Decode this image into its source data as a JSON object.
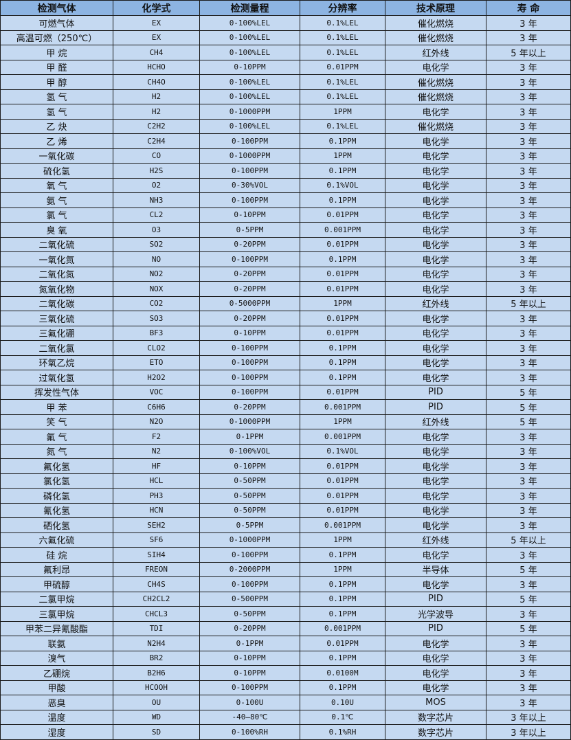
{
  "table": {
    "headers": [
      "检测气体",
      "化学式",
      "检测量程",
      "分辨率",
      "技术原理",
      "寿 命"
    ],
    "rows": [
      [
        "可燃气体",
        "EX",
        "0-100%LEL",
        "0.1%LEL",
        "催化燃烧",
        "3 年"
      ],
      [
        "高温可燃（250℃）",
        "EX",
        "0-100%LEL",
        "0.1%LEL",
        "催化燃烧",
        "3 年"
      ],
      [
        "甲 烷",
        "CH4",
        "0-100%LEL",
        "0.1%LEL",
        "红外线",
        "5 年以上"
      ],
      [
        "甲 醛",
        "HCHO",
        "0-10PPM",
        "0.01PPM",
        "电化学",
        "3 年"
      ],
      [
        "甲 醇",
        "CH4O",
        "0-100%LEL",
        "0.1%LEL",
        "催化燃烧",
        "3 年"
      ],
      [
        "氢 气",
        "H2",
        "0-100%LEL",
        "0.1%LEL",
        "催化燃烧",
        "3 年"
      ],
      [
        "氢 气",
        "H2",
        "0-1000PPM",
        "1PPM",
        "电化学",
        "3 年"
      ],
      [
        "乙 炔",
        "C2H2",
        "0-100%LEL",
        "0.1%LEL",
        "催化燃烧",
        "3 年"
      ],
      [
        "乙 烯",
        "C2H4",
        "0-100PPM",
        "0.1PPM",
        "电化学",
        "3 年"
      ],
      [
        "一氧化碳",
        "CO",
        "0-1000PPM",
        "1PPM",
        "电化学",
        "3 年"
      ],
      [
        "硫化氢",
        "H2S",
        "0-100PPM",
        "0.1PPM",
        "电化学",
        "3 年"
      ],
      [
        "氧 气",
        "O2",
        "0-30%VOL",
        "0.1%VOL",
        "电化学",
        "3 年"
      ],
      [
        "氨 气",
        "NH3",
        "0-100PPM",
        "0.1PPM",
        "电化学",
        "3 年"
      ],
      [
        "氯 气",
        "CL2",
        "0-10PPM",
        "0.01PPM",
        "电化学",
        "3 年"
      ],
      [
        "臭 氧",
        "O3",
        "0-5PPM",
        "0.001PPM",
        "电化学",
        "3 年"
      ],
      [
        "二氧化硫",
        "SO2",
        "0-20PPM",
        "0.01PPM",
        "电化学",
        "3 年"
      ],
      [
        "一氧化氮",
        "NO",
        "0-100PPM",
        "0.1PPM",
        "电化学",
        "3 年"
      ],
      [
        "二氧化氮",
        "NO2",
        "0-20PPM",
        "0.01PPM",
        "电化学",
        "3 年"
      ],
      [
        "氮氧化物",
        "NOX",
        "0-20PPM",
        "0.01PPM",
        "电化学",
        "3 年"
      ],
      [
        "二氧化碳",
        "CO2",
        "0-5000PPM",
        "1PPM",
        "红外线",
        "5 年以上"
      ],
      [
        "三氧化硫",
        "SO3",
        "0-20PPM",
        "0.01PPM",
        "电化学",
        "3 年"
      ],
      [
        "三氟化硼",
        "BF3",
        "0-10PPM",
        "0.01PPM",
        "电化学",
        "3 年"
      ],
      [
        "二氧化氯",
        "CLO2",
        "0-100PPM",
        "0.1PPM",
        "电化学",
        "3 年"
      ],
      [
        "环氧乙烷",
        "ETO",
        "0-100PPM",
        "0.1PPM",
        "电化学",
        "3 年"
      ],
      [
        "过氧化氢",
        "H2O2",
        "0-100PPM",
        "0.1PPM",
        "电化学",
        "3 年"
      ],
      [
        "挥发性气体",
        "VOC",
        "0-100PPM",
        "0.01PPM",
        "PID",
        "5 年"
      ],
      [
        "甲 苯",
        "C6H6",
        "0-20PPM",
        "0.001PPM",
        "PID",
        "5 年"
      ],
      [
        "笑 气",
        "N2O",
        "0-1000PPM",
        "1PPM",
        "红外线",
        "5 年"
      ],
      [
        "氟 气",
        "F2",
        "0-1PPM",
        "0.001PPM",
        "电化学",
        "3 年"
      ],
      [
        "氮 气",
        "N2",
        "0-100%VOL",
        "0.1%VOL",
        "电化学",
        "3 年"
      ],
      [
        "氟化氢",
        "HF",
        "0-10PPM",
        "0.01PPM",
        "电化学",
        "3 年"
      ],
      [
        "氯化氢",
        "HCL",
        "0-50PPM",
        "0.01PPM",
        "电化学",
        "3 年"
      ],
      [
        "磷化氢",
        "PH3",
        "0-50PPM",
        "0.01PPM",
        "电化学",
        "3 年"
      ],
      [
        "氰化氢",
        "HCN",
        "0-50PPM",
        "0.01PPM",
        "电化学",
        "3 年"
      ],
      [
        "硒化氢",
        "SEH2",
        "0-5PPM",
        "0.001PPM",
        "电化学",
        "3 年"
      ],
      [
        "六氟化硫",
        "SF6",
        "0-1000PPM",
        "1PPM",
        "红外线",
        "5 年以上"
      ],
      [
        "硅 烷",
        "SIH4",
        "0-100PPM",
        "0.1PPM",
        "电化学",
        "3 年"
      ],
      [
        "氟利昂",
        "FREON",
        "0-2000PPM",
        "1PPM",
        "半导体",
        "5 年"
      ],
      [
        "甲硫醇",
        "CH4S",
        "0-100PPM",
        "0.1PPM",
        "电化学",
        "3 年"
      ],
      [
        "二氯甲烷",
        "CH2CL2",
        "0-500PPM",
        "0.1PPM",
        "PID",
        "5 年"
      ],
      [
        "三氯甲烷",
        "CHCL3",
        "0-50PPM",
        "0.1PPM",
        "光学波导",
        "3 年"
      ],
      [
        "甲苯二异氰酸酯",
        "TDI",
        "0-20PPM",
        "0.001PPM",
        "PID",
        "5 年"
      ],
      [
        "联氨",
        "N2H4",
        "0-1PPM",
        "0.01PPM",
        "电化学",
        "3 年"
      ],
      [
        "溴气",
        "BR2",
        "0-10PPM",
        "0.1PPM",
        "电化学",
        "3 年"
      ],
      [
        "乙硼烷",
        "B2H6",
        "0-10PPM",
        "0.0100M",
        "电化学",
        "3 年"
      ],
      [
        "甲酸",
        "HCOOH",
        "0-100PPM",
        "0.1PPM",
        "电化学",
        "3 年"
      ],
      [
        "恶臭",
        "OU",
        "0-100U",
        "0.10U",
        "MOS",
        "3 年"
      ],
      [
        "温度",
        "WD",
        "-40—80℃",
        "0.1℃",
        "数字芯片",
        "3 年以上"
      ],
      [
        "湿度",
        "SD",
        "0-100%RH",
        "0.1%RH",
        "数字芯片",
        "3 年以上"
      ]
    ]
  },
  "colors": {
    "header_bg": "#8db4e2",
    "row_bg": "#c5d9f1",
    "border": "#1a1a1a"
  }
}
